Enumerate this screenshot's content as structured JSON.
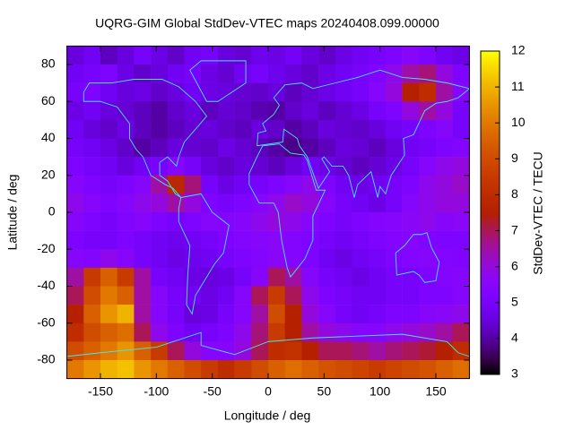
{
  "chart_data": {
    "type": "heatmap",
    "title": "UQRG-GIM Global StdDev-VTEC maps 20240408.099.00000",
    "x_label": "Longitude / deg",
    "y_label": "Latitude / deg",
    "colorbar_label": "StdDev-VTEC / TECU",
    "colormap": "black-blue-purple-red-yellow",
    "xlim": [
      -180,
      180
    ],
    "ylim": [
      -90,
      90
    ],
    "zlim": [
      3,
      12
    ],
    "xticks": [
      -150,
      -100,
      -50,
      0,
      50,
      100,
      150
    ],
    "yticks": [
      -80,
      -60,
      -40,
      -20,
      0,
      20,
      40,
      60,
      80
    ],
    "zticks": [
      3,
      4,
      5,
      6,
      7,
      8,
      9,
      10,
      11,
      12
    ],
    "lon": [
      -172.5,
      -157.5,
      -142.5,
      -127.5,
      -112.5,
      -97.5,
      -82.5,
      -67.5,
      -52.5,
      -37.5,
      -22.5,
      -7.5,
      7.5,
      22.5,
      37.5,
      52.5,
      67.5,
      82.5,
      97.5,
      112.5,
      127.5,
      142.5,
      157.5,
      172.5
    ],
    "lat": [
      85,
      75,
      65,
      55,
      45,
      35,
      25,
      15,
      5,
      -5,
      -15,
      -25,
      -35,
      -45,
      -55,
      -65,
      -75,
      -85
    ],
    "values": [
      [
        4.5,
        4.8,
        4.2,
        4.5,
        5,
        4.6,
        4.3,
        4.8,
        5,
        4.5,
        4.4,
        4.7,
        4.6,
        4.9,
        4.5,
        4.3,
        4.6,
        4.8,
        5,
        5.2,
        5.5,
        5.2,
        4.8,
        4.6
      ],
      [
        4.8,
        5,
        5.2,
        4.6,
        4.3,
        4.5,
        4.8,
        5,
        4.6,
        4.4,
        4.8,
        5,
        4.7,
        4.5,
        4.3,
        4.6,
        4.8,
        5,
        5.3,
        5.8,
        6.5,
        6.8,
        6,
        5.2
      ],
      [
        5,
        5.2,
        4.8,
        4.5,
        4.6,
        4.3,
        4.5,
        4.8,
        4.6,
        4.5,
        4.4,
        4.3,
        4.5,
        4.2,
        4.4,
        4.6,
        4.8,
        5,
        5.5,
        6,
        7.5,
        8,
        6.5,
        5.5
      ],
      [
        4.6,
        4.8,
        4.5,
        4.4,
        4.2,
        4,
        4.3,
        4.5,
        4.2,
        4.4,
        4.3,
        4.1,
        4,
        4.3,
        4.5,
        4.2,
        4.4,
        4.6,
        5,
        5.2,
        6,
        6.5,
        6,
        5
      ],
      [
        4.8,
        4.5,
        4.3,
        4.6,
        4.2,
        4,
        4.2,
        4.4,
        4.5,
        4.3,
        4.2,
        4.5,
        4.3,
        4,
        4.2,
        4.5,
        4.4,
        4.3,
        4.5,
        4.8,
        5,
        5.2,
        5.5,
        5
      ],
      [
        5,
        4.8,
        4.6,
        4.3,
        4,
        4.2,
        4.5,
        4.4,
        4.3,
        4.6,
        4.4,
        4.2,
        4,
        3.8,
        4,
        4.2,
        4.5,
        4.4,
        4.2,
        4.5,
        4.8,
        5,
        5.2,
        5.4
      ],
      [
        5.2,
        5,
        4.8,
        4.5,
        4.8,
        5,
        5.5,
        5,
        4.5,
        4.3,
        4.5,
        4.4,
        4.2,
        4.5,
        4.8,
        4.6,
        4.4,
        4.2,
        4.4,
        4.6,
        5,
        5.5,
        5.8,
        6
      ],
      [
        5.5,
        5.2,
        5,
        5.2,
        5.5,
        6.5,
        7.8,
        6.8,
        5,
        4.6,
        4.8,
        5,
        5.2,
        5.5,
        5.8,
        5.2,
        4.8,
        4.6,
        4.8,
        5,
        5.2,
        5.8,
        6,
        6.2
      ],
      [
        5.8,
        5.5,
        5.2,
        5.5,
        5.8,
        6,
        6.5,
        6,
        5.2,
        5,
        5.2,
        5.5,
        5.8,
        6.2,
        6,
        5.5,
        5,
        4.8,
        4.6,
        5,
        5.5,
        5.8,
        6,
        6
      ],
      [
        5.5,
        5.2,
        5,
        5.3,
        5.5,
        5.2,
        5,
        5.2,
        5.5,
        5.4,
        5.5,
        5.8,
        6,
        5.8,
        5.5,
        5.2,
        5,
        5.2,
        5.4,
        5.5,
        5.6,
        5.8,
        5.5,
        5.6
      ],
      [
        5.2,
        5,
        5,
        5.2,
        5,
        4.8,
        4.7,
        4.8,
        5,
        5.2,
        5.4,
        5.5,
        5.6,
        5.4,
        5.2,
        5,
        4.8,
        5,
        5.2,
        5.4,
        5.5,
        5.3,
        5.2,
        5.2
      ],
      [
        5.5,
        5.4,
        5.8,
        5.5,
        5,
        4.8,
        4.6,
        4.7,
        4.8,
        5,
        5.2,
        5.4,
        5.6,
        5.4,
        5.2,
        4.8,
        4.6,
        4.8,
        5,
        5.2,
        5.4,
        5.5,
        5.4,
        5.3
      ],
      [
        6.5,
        8.5,
        9.5,
        8.5,
        6.5,
        5,
        4.8,
        4.6,
        4.5,
        4.6,
        5,
        5.5,
        7,
        6.5,
        5.5,
        5,
        4.8,
        4.6,
        4.8,
        5,
        5,
        5.2,
        5.4,
        5.5
      ],
      [
        7,
        9,
        10,
        9.5,
        6.5,
        5.5,
        5,
        4.8,
        4.6,
        4.8,
        5.5,
        7,
        8.5,
        7,
        5.8,
        5.2,
        5,
        4.8,
        4.8,
        5,
        5,
        5.2,
        5.2,
        5.5
      ],
      [
        7.5,
        9.5,
        10.5,
        11,
        6.5,
        5.5,
        5,
        4.5,
        4.6,
        5,
        5.5,
        6.5,
        9,
        7.5,
        6,
        5.5,
        5,
        4.8,
        5,
        5.2,
        5.2,
        5.5,
        5.6,
        5.8
      ],
      [
        8,
        9,
        9.5,
        9.8,
        7,
        5.8,
        5.2,
        4.8,
        5,
        5.2,
        5.8,
        6.8,
        8.5,
        7.5,
        6.5,
        6,
        5.8,
        5.5,
        5.5,
        5.8,
        6,
        6.2,
        6.5,
        7
      ],
      [
        9,
        9.5,
        10,
        10.5,
        9.5,
        8.5,
        7,
        6,
        5.5,
        5.5,
        6,
        7,
        8,
        8.2,
        7.5,
        7,
        7,
        6.8,
        6.5,
        6.8,
        7,
        7.2,
        7.5,
        8
      ],
      [
        10,
        10.5,
        11,
        11.2,
        10.5,
        10,
        9.5,
        9,
        8.5,
        8,
        8.5,
        9,
        9.5,
        9.8,
        9.5,
        9.2,
        9,
        8.8,
        8.5,
        8.8,
        9,
        9.2,
        9.5,
        9.8
      ]
    ]
  }
}
